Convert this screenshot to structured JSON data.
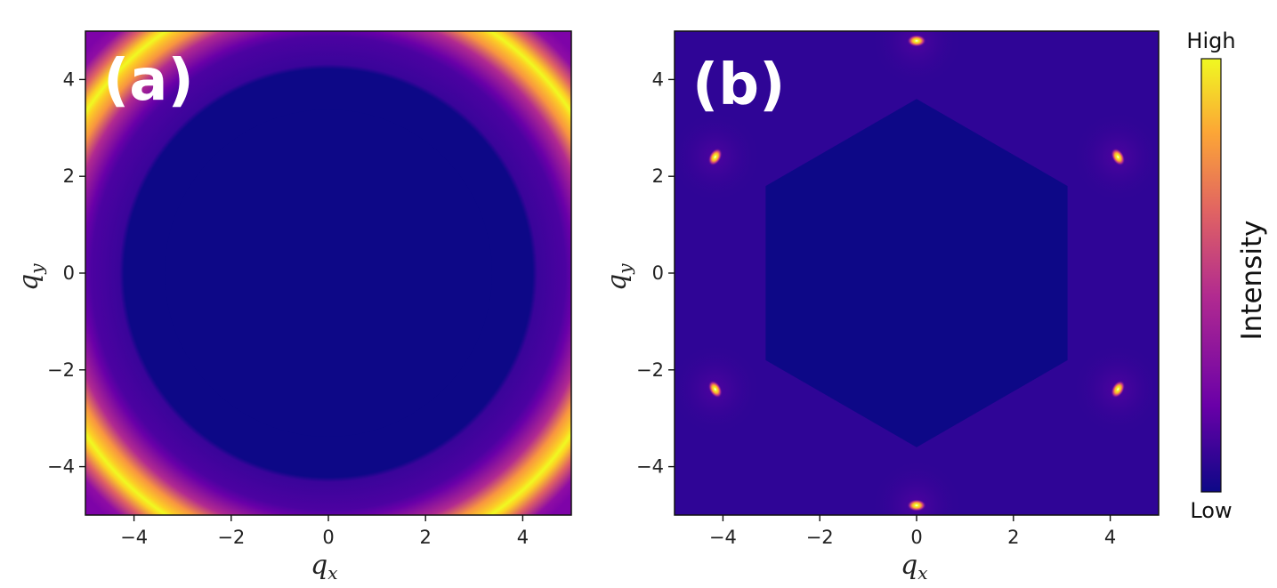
{
  "chart_data": [
    {
      "type": "heatmap",
      "panel_label": "(a)",
      "pattern": "ring",
      "xlim": [
        -5,
        5
      ],
      "ylim": [
        -5,
        5
      ],
      "x_ticks": [
        -4,
        -2,
        0,
        2,
        4
      ],
      "y_ticks": [
        -4,
        -2,
        0,
        2,
        4
      ],
      "x_tick_labels": [
        "−4",
        "−2",
        "0",
        "2",
        "4"
      ],
      "y_tick_labels": [
        "−4",
        "−2",
        "0",
        "2",
        "4"
      ],
      "xlabel": "q",
      "xlabel_sub": "x",
      "ylabel": "q",
      "ylabel_sub": "y",
      "ring_radius": 4.8,
      "inner_dark_radius": 3.4
    },
    {
      "type": "heatmap",
      "panel_label": "(b)",
      "pattern": "bragg-peaks",
      "xlim": [
        -5,
        5
      ],
      "ylim": [
        -5,
        5
      ],
      "x_ticks": [
        -4,
        -2,
        0,
        2,
        4
      ],
      "y_ticks": [
        -4,
        -2,
        0,
        2,
        4
      ],
      "x_tick_labels": [
        "−4",
        "−2",
        "0",
        "2",
        "4"
      ],
      "y_tick_labels": [
        "−4",
        "−2",
        "0",
        "2",
        "4"
      ],
      "xlabel": "q",
      "xlabel_sub": "x",
      "ylabel": "q",
      "ylabel_sub": "y",
      "peaks": [
        {
          "x": 0,
          "y": 4.8
        },
        {
          "x": 0,
          "y": -4.8
        },
        {
          "x": 4.16,
          "y": 2.4
        },
        {
          "x": -4.16,
          "y": 2.4
        },
        {
          "x": 4.16,
          "y": -2.4
        },
        {
          "x": -4.16,
          "y": -2.4
        }
      ]
    }
  ],
  "colorbar": {
    "title": "Intensity",
    "high_label": "High",
    "low_label": "Low",
    "colors": [
      "#0d0887",
      "#6a00a8",
      "#b12a90",
      "#e16462",
      "#fca636",
      "#f0f921"
    ]
  }
}
